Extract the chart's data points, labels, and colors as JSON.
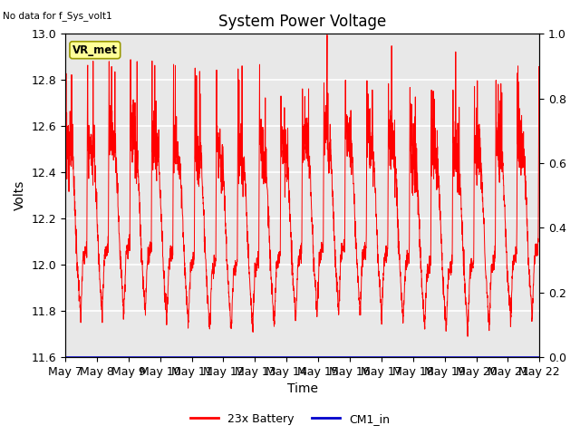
{
  "title": "System Power Voltage",
  "no_data_label": "No data for f_Sys_volt1",
  "xlabel": "Time",
  "ylabel": "Volts",
  "ylim_left": [
    11.6,
    13.0
  ],
  "ylim_right": [
    0.0,
    1.0
  ],
  "yticks_left": [
    11.6,
    11.8,
    12.0,
    12.2,
    12.4,
    12.6,
    12.8,
    13.0
  ],
  "yticks_right": [
    0.0,
    0.2,
    0.4,
    0.6,
    0.8,
    1.0
  ],
  "x_tick_labels": [
    "May 7",
    "May 8",
    "May 9",
    "May 10",
    "May 11",
    "May 12",
    "May 13",
    "May 14",
    "May 15",
    "May 16",
    "May 17",
    "May 18",
    "May 19",
    "May 20",
    "May 21",
    "May 22"
  ],
  "battery_color": "#ff0000",
  "cm1_color": "#0000cc",
  "background_color": "#e8e8e8",
  "vr_met_label": "VR_met",
  "vr_met_bg": "#ffff99",
  "vr_met_border": "#999900",
  "legend_battery": "23x Battery",
  "legend_cm1": "CM1_in",
  "title_fontsize": 12,
  "axis_label_fontsize": 10,
  "tick_fontsize": 9,
  "n_days": 15,
  "samples_per_day": 200,
  "cycle_period_days": 0.68,
  "plateau_low": 12.0,
  "plateau_high": 12.55,
  "peak_high": 12.95,
  "trough_low": 11.75,
  "noise_plateau": 0.07,
  "noise_base": 0.03
}
